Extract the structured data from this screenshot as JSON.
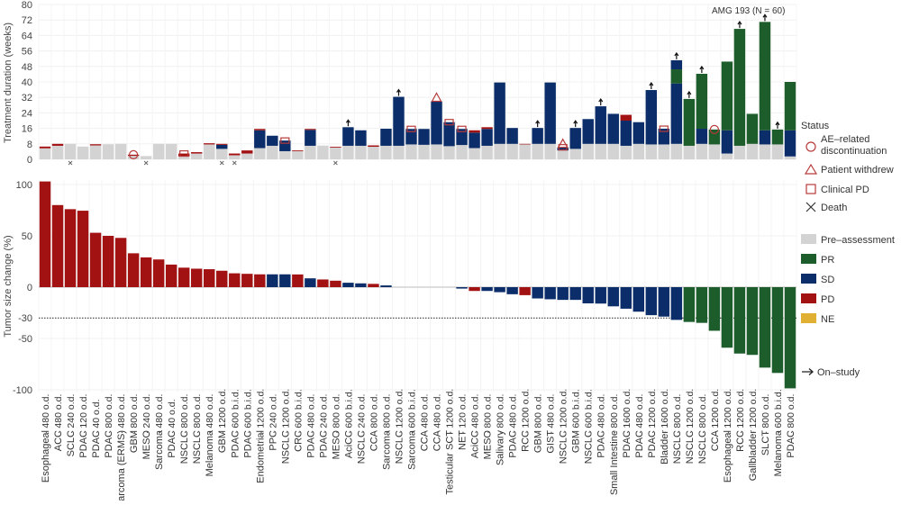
{
  "colors": {
    "pre": "#d3d3d3",
    "PR": "#1d5c2b",
    "SD": "#0b2e6a",
    "PD": "#a31212",
    "NE": "#e0b033",
    "marker": "#b83a3a"
  },
  "chart_data": [
    {
      "type": "bar",
      "stacked": true,
      "title": "AMG 193 (N = 60)",
      "ylabel": "Treatment duration (weeks)",
      "ylim": [
        0,
        80
      ],
      "yticks": [
        0,
        8,
        16,
        24,
        32,
        40,
        48,
        56,
        64,
        72,
        80
      ],
      "grid": true
    },
    {
      "type": "bar",
      "ylabel": "Tumor size change (%)",
      "ylim": [
        -100,
        105
      ],
      "yticks": [
        100,
        50,
        0,
        -30,
        -50,
        -100
      ],
      "reference_line": -30,
      "grid": true
    }
  ],
  "legend": {
    "status_title": "Status",
    "markers": [
      {
        "key": "AE",
        "label1": "AE–related",
        "label2": "discontinuation"
      },
      {
        "key": "withdrew",
        "label1": "Patient withdrew"
      },
      {
        "key": "clinicalPD",
        "label1": "Clinical PD"
      },
      {
        "key": "death",
        "label1": "Death"
      }
    ],
    "fills": [
      {
        "key": "pre",
        "label": "Pre–assessment"
      },
      {
        "key": "PR",
        "label": "PR"
      },
      {
        "key": "SD",
        "label": "SD"
      },
      {
        "key": "PD",
        "label": "PD"
      },
      {
        "key": "NE",
        "label": "NE"
      }
    ],
    "on_study": "On–study"
  },
  "bars": [
    {
      "type": "Esophageal",
      "dose": "480 o.d.",
      "weeks": [
        [
          "pre",
          5.7
        ],
        [
          "PD",
          6.6
        ]
      ],
      "markers": [],
      "change": 103,
      "response": "PD"
    },
    {
      "type": "ACC",
      "dose": "480 o.d.",
      "weeks": [
        [
          "pre",
          7
        ],
        [
          "PD",
          8
        ]
      ],
      "markers": [],
      "change": 80,
      "response": "PD"
    },
    {
      "type": "SCLC",
      "dose": "240 o.d.",
      "weeks": [
        [
          "pre",
          8
        ]
      ],
      "markers": [
        "death"
      ],
      "change": 76,
      "response": "PD"
    },
    {
      "type": "PDAC",
      "dose": "120 o.d.",
      "weeks": [
        [
          "pre",
          6.6
        ]
      ],
      "markers": [],
      "change": 74.5,
      "response": "PD"
    },
    {
      "type": "PDAC",
      "dose": "40 o.d.",
      "weeks": [
        [
          "pre",
          7.2
        ],
        [
          "PD",
          7.8
        ]
      ],
      "markers": [],
      "change": 53,
      "response": "PD"
    },
    {
      "type": "PDAC",
      "dose": "800 o.d.",
      "weeks": [
        [
          "pre",
          7.8
        ]
      ],
      "markers": [],
      "change": 50,
      "response": "PD"
    },
    {
      "type": "Sarcoma (ERMS)",
      "dose": "480 o.d.",
      "weeks": [
        [
          "pre",
          8
        ]
      ],
      "markers": [],
      "change": 48,
      "response": "PD"
    },
    {
      "type": "GBM",
      "dose": "800 o.d.",
      "weeks": [
        [
          "pre",
          1.8
        ],
        [
          "PD",
          2.4
        ]
      ],
      "markers": [
        "AE"
      ],
      "change": 33,
      "response": "PD"
    },
    {
      "type": "MESO",
      "dose": "240 o.d.",
      "weeks": [
        [
          "pre",
          1.7
        ]
      ],
      "markers": [
        "death"
      ],
      "change": 29,
      "response": "PD"
    },
    {
      "type": "Sarcoma",
      "dose": "480 o.d.",
      "weeks": [
        [
          "pre",
          8
        ]
      ],
      "markers": [],
      "change": 27,
      "response": "PD"
    },
    {
      "type": "PDAC",
      "dose": "40 o.d.",
      "weeks": [
        [
          "pre",
          8
        ]
      ],
      "markers": [],
      "change": 22,
      "response": "PD"
    },
    {
      "type": "NSCLC",
      "dose": "800 o.d.",
      "weeks": [
        [
          "pre",
          1.5
        ],
        [
          "PD",
          3
        ]
      ],
      "markers": [
        "clinicalPD"
      ],
      "change": 19,
      "response": "PD"
    },
    {
      "type": "NSCLC",
      "dose": "800 o.d.",
      "weeks": [
        [
          "pre",
          3
        ],
        [
          "PD",
          3.7
        ]
      ],
      "markers": [],
      "change": 18,
      "response": "PD"
    },
    {
      "type": "Melanoma",
      "dose": "480 o.d.",
      "weeks": [
        [
          "pre",
          7.7
        ],
        [
          "PD",
          8.3
        ]
      ],
      "markers": [],
      "change": 17.5,
      "response": "PD"
    },
    {
      "type": "GBM",
      "dose": "1200 o.d.",
      "weeks": [
        [
          "pre",
          5.4
        ],
        [
          "SD",
          7.5
        ],
        [
          "PD",
          8
        ]
      ],
      "markers": [
        "death"
      ],
      "change": 16,
      "response": "PD"
    },
    {
      "type": "PDAC",
      "dose": "600 b.i.d.",
      "weeks": [
        [
          "pre",
          2.1
        ],
        [
          "PD",
          3
        ]
      ],
      "markers": [
        "death"
      ],
      "change": 13.5,
      "response": "PD"
    },
    {
      "type": "PDAC",
      "dose": "600 b.i.d.",
      "weeks": [
        [
          "pre",
          3
        ],
        [
          "PD",
          4.6
        ]
      ],
      "markers": [],
      "change": 13,
      "response": "PD"
    },
    {
      "type": "Endometrial",
      "dose": "1200 o.d.",
      "weeks": [
        [
          "pre",
          5.8
        ],
        [
          "SD",
          15
        ],
        [
          "PD",
          15.7
        ]
      ],
      "markers": [],
      "change": 12.5,
      "response": "PD"
    },
    {
      "type": "PPC",
      "dose": "240 o.d.",
      "weeks": [
        [
          "pre",
          7
        ],
        [
          "SD",
          12.2
        ]
      ],
      "markers": [],
      "change": 12.5,
      "response": "SD"
    },
    {
      "type": "NSCLC",
      "dose": "1200 o.d.",
      "weeks": [
        [
          "pre",
          4.2
        ],
        [
          "SD",
          9.7
        ]
      ],
      "markers": [
        "clinicalPD"
      ],
      "change": 12.5,
      "response": "SD"
    },
    {
      "type": "CRC",
      "dose": "600 b.i.d.",
      "weeks": [
        [
          "pre",
          4.2
        ],
        [
          "PD",
          4.6
        ]
      ],
      "markers": [],
      "change": 12.4,
      "response": "PD"
    },
    {
      "type": "PDAC",
      "dose": "480 o.d.",
      "weeks": [
        [
          "pre",
          7
        ],
        [
          "SD",
          15.2
        ],
        [
          "PD",
          15.7
        ]
      ],
      "markers": [],
      "change": 8.6,
      "response": "SD"
    },
    {
      "type": "PDAC",
      "dose": "240 o.d.",
      "weeks": [
        [
          "pre",
          7.1
        ]
      ],
      "markers": [],
      "change": 7.5,
      "response": "PD"
    },
    {
      "type": "MESO",
      "dose": "800 o.d.",
      "weeks": [
        [
          "pre",
          6.1
        ],
        [
          "PD",
          6.5
        ]
      ],
      "markers": [
        "death"
      ],
      "change": 6.3,
      "response": "PD"
    },
    {
      "type": "AciCC",
      "dose": "600 b.i.d.",
      "weeks": [
        [
          "pre",
          7
        ],
        [
          "SD",
          16.6
        ]
      ],
      "markers": [
        "onstudy"
      ],
      "change": 4.3,
      "response": "SD"
    },
    {
      "type": "NSCLC",
      "dose": "240 o.d.",
      "weeks": [
        [
          "pre",
          7
        ],
        [
          "SD",
          15
        ]
      ],
      "markers": [],
      "change": 3.7,
      "response": "SD"
    },
    {
      "type": "CCA",
      "dose": "800 o.d.",
      "weeks": [
        [
          "pre",
          6.5
        ],
        [
          "PD",
          7.2
        ]
      ],
      "markers": [],
      "change": 3.2,
      "response": "PD"
    },
    {
      "type": "Sarcoma",
      "dose": "800 o.d.",
      "weeks": [
        [
          "pre",
          7
        ],
        [
          "SD",
          15.8
        ]
      ],
      "markers": [],
      "change": 1.7,
      "response": "SD"
    },
    {
      "type": "NSCLC",
      "dose": "1200 o.d.",
      "weeks": [
        [
          "pre",
          7
        ],
        [
          "SD",
          32.3
        ]
      ],
      "markers": [
        "onstudy"
      ],
      "change": 0,
      "response": "SD"
    },
    {
      "type": "Sarcoma",
      "dose": "600 b.i.d.",
      "weeks": [
        [
          "pre",
          7.7
        ],
        [
          "SD",
          15.7
        ]
      ],
      "markers": [
        "clinicalPD"
      ],
      "change": 0,
      "response": "SD"
    },
    {
      "type": "CCA",
      "dose": "480 o.d.",
      "weeks": [
        [
          "pre",
          7.5
        ],
        [
          "SD",
          15.7
        ]
      ],
      "markers": [],
      "change": 0,
      "response": "SD"
    },
    {
      "type": "CCA",
      "dose": "480 o.d.",
      "weeks": [
        [
          "pre",
          7.7
        ],
        [
          "SD",
          30
        ]
      ],
      "markers": [
        "withdrew"
      ],
      "change": 0,
      "response": "SD"
    },
    {
      "type": "Testicular SCT",
      "dose": "1200 o.d.",
      "weeks": [
        [
          "pre",
          6.8
        ],
        [
          "SD",
          19.2
        ]
      ],
      "markers": [
        "clinicalPD"
      ],
      "change": 0,
      "response": "SD"
    },
    {
      "type": "NET",
      "dose": "120 o.d.",
      "weeks": [
        [
          "pre",
          7.4
        ],
        [
          "SD",
          15.7
        ]
      ],
      "markers": [
        "clinicalPD"
      ],
      "change": -1.4,
      "response": "SD"
    },
    {
      "type": "AciCC",
      "dose": "480 o.d.",
      "weeks": [
        [
          "pre",
          5.8
        ],
        [
          "SD",
          13.8
        ],
        [
          "PD",
          15
        ]
      ],
      "markers": [],
      "change": -3.7,
      "response": "PD"
    },
    {
      "type": "MESO",
      "dose": "800 o.d.",
      "weeks": [
        [
          "pre",
          7
        ],
        [
          "SD",
          15.7
        ],
        [
          "PD",
          16.6
        ]
      ],
      "markers": [],
      "change": -3.7,
      "response": "SD"
    },
    {
      "type": "Salivary",
      "dose": "800 o.d.",
      "weeks": [
        [
          "pre",
          8
        ],
        [
          "SD",
          39.7
        ]
      ],
      "markers": [],
      "change": -4.9,
      "response": "SD"
    },
    {
      "type": "PDAC",
      "dose": "480 o.d.",
      "weeks": [
        [
          "pre",
          8
        ],
        [
          "SD",
          16.2
        ]
      ],
      "markers": [],
      "change": -6.9,
      "response": "SD"
    },
    {
      "type": "RCC",
      "dose": "1200 o.d.",
      "weeks": [
        [
          "pre",
          7.7
        ],
        [
          "PD",
          8
        ]
      ],
      "markers": [],
      "change": -7.8,
      "response": "PD"
    },
    {
      "type": "GBM",
      "dose": "800 o.d.",
      "weeks": [
        [
          "pre",
          8
        ],
        [
          "SD",
          16.2
        ]
      ],
      "markers": [
        "onstudy"
      ],
      "change": -11,
      "response": "SD"
    },
    {
      "type": "GIST",
      "dose": "480 o.d.",
      "weeks": [
        [
          "pre",
          8
        ],
        [
          "SD",
          39.7
        ]
      ],
      "markers": [],
      "change": -11.8,
      "response": "SD"
    },
    {
      "type": "NSCLC",
      "dose": "1200 o.d.",
      "weeks": [
        [
          "pre",
          4.6
        ],
        [
          "SD",
          6.2
        ]
      ],
      "markers": [
        "withdrew",
        "clinicalPD"
      ],
      "change": -12.4,
      "response": "SD"
    },
    {
      "type": "GBM",
      "dose": "600 b.i.d.",
      "weeks": [
        [
          "pre",
          5.4
        ],
        [
          "SD",
          16.2
        ]
      ],
      "markers": [
        "onstudy"
      ],
      "change": -12.4,
      "response": "SD"
    },
    {
      "type": "NSCLC",
      "dose": "600 b.i.d.",
      "weeks": [
        [
          "pre",
          8
        ],
        [
          "SD",
          20.8
        ]
      ],
      "markers": [],
      "change": -15.8,
      "response": "SD"
    },
    {
      "type": "PDAC",
      "dose": "480 o.d.",
      "weeks": [
        [
          "pre",
          8
        ],
        [
          "SD",
          27.4
        ]
      ],
      "markers": [
        "onstudy"
      ],
      "change": -16,
      "response": "SD"
    },
    {
      "type": "Small Intestine",
      "dose": "800 o.d.",
      "weeks": [
        [
          "pre",
          8
        ],
        [
          "SD",
          23.5
        ]
      ],
      "markers": [],
      "change": -18.7,
      "response": "SD"
    },
    {
      "type": "PDAC",
      "dose": "1600 o.d.",
      "weeks": [
        [
          "pre",
          7
        ],
        [
          "SD",
          20
        ],
        [
          "PD",
          23
        ]
      ],
      "markers": [],
      "change": -21,
      "response": "SD"
    },
    {
      "type": "PDAC",
      "dose": "480 o.d.",
      "weeks": [
        [
          "pre",
          8
        ],
        [
          "SD",
          19.2
        ]
      ],
      "markers": [],
      "change": -23.9,
      "response": "SD"
    },
    {
      "type": "PDAC",
      "dose": "1200 o.d.",
      "weeks": [
        [
          "pre",
          7.7
        ],
        [
          "SD",
          35.8
        ]
      ],
      "markers": [
        "onstudy"
      ],
      "change": -27.3,
      "response": "SD"
    },
    {
      "type": "Bladder",
      "dose": "1600 o.d.",
      "weeks": [
        [
          "pre",
          7.7
        ],
        [
          "SD",
          15.8
        ]
      ],
      "markers": [
        "clinicalPD"
      ],
      "change": -28.7,
      "response": "SD"
    },
    {
      "type": "NSCLC",
      "dose": "800 o.d.",
      "weeks": [
        [
          "pre",
          8
        ],
        [
          "SD",
          39.2
        ],
        [
          "PR",
          46.5
        ],
        [
          "SD",
          51.2
        ]
      ],
      "markers": [
        "onstudy"
      ],
      "change": -31.9,
      "response": "SD"
    },
    {
      "type": "NSCLC",
      "dose": "1200 o.d.",
      "weeks": [
        [
          "pre",
          7
        ],
        [
          "PR",
          31.2
        ]
      ],
      "markers": [
        "onstudy"
      ],
      "change": -33.9,
      "response": "PR"
    },
    {
      "type": "NSCLC",
      "dose": "800 o.d.",
      "weeks": [
        [
          "pre",
          8
        ],
        [
          "SD",
          15.8
        ],
        [
          "PR",
          44.2
        ]
      ],
      "markers": [
        "onstudy"
      ],
      "change": -34.8,
      "response": "PR"
    },
    {
      "type": "CCA",
      "dose": "1200 o.d.",
      "weeks": [
        [
          "pre",
          7.7
        ],
        [
          "PR",
          15.4
        ]
      ],
      "markers": [
        "AE"
      ],
      "change": -42.5,
      "response": "PR"
    },
    {
      "type": "Esophageal",
      "dose": "1200 o.d.",
      "weeks": [
        [
          "pre",
          3
        ],
        [
          "SD",
          15
        ],
        [
          "PR",
          50.5
        ]
      ],
      "markers": [],
      "change": -59,
      "response": "PR"
    },
    {
      "type": "RCC",
      "dose": "1200 o.d.",
      "weeks": [
        [
          "pre",
          7
        ],
        [
          "PR",
          67.4
        ]
      ],
      "markers": [
        "onstudy"
      ],
      "change": -64.7,
      "response": "PR"
    },
    {
      "type": "Gallbladder",
      "dose": "1200 o.d.",
      "weeks": [
        [
          "pre",
          8
        ],
        [
          "PR",
          23.5
        ]
      ],
      "markers": [],
      "change": -66,
      "response": "PR"
    },
    {
      "type": "SLCT",
      "dose": "800 o.d.",
      "weeks": [
        [
          "pre",
          7.7
        ],
        [
          "SD",
          15
        ],
        [
          "PR",
          71
        ]
      ],
      "markers": [
        "onstudy"
      ],
      "change": -78.4,
      "response": "PR"
    },
    {
      "type": "Melanoma",
      "dose": "600 b.i.d.",
      "weeks": [
        [
          "pre",
          7.7
        ],
        [
          "PR",
          15.4
        ]
      ],
      "markers": [
        "onstudy"
      ],
      "change": -83.6,
      "response": "PR"
    },
    {
      "type": "PDAC",
      "dose": "800 o.d.",
      "weeks": [
        [
          "pre",
          1.5
        ],
        [
          "SD",
          15
        ],
        [
          "PR",
          40
        ]
      ],
      "markers": [],
      "change": -98.6,
      "response": "PR"
    }
  ]
}
